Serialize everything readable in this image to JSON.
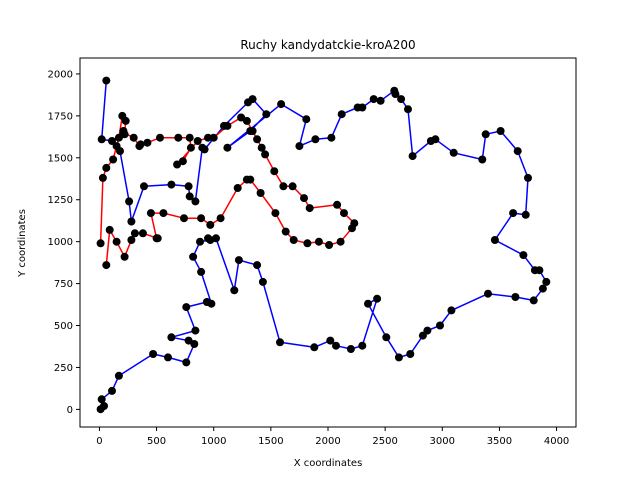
{
  "chart_data": {
    "type": "scatter",
    "title": "Ruchy kandydatckie-kroA200",
    "xlabel": "X coordinates",
    "ylabel": "Y coordinates",
    "xlim": [
      -170,
      4170
    ],
    "ylim": [
      -105,
      2095
    ],
    "xticks": [
      0,
      500,
      1000,
      1500,
      2000,
      2500,
      3000,
      3500,
      4000
    ],
    "yticks": [
      0,
      250,
      500,
      750,
      1000,
      1250,
      1500,
      1750,
      2000
    ],
    "grid": false,
    "colors": {
      "point": "#000000",
      "path_a": "#0000ff",
      "path_b": "#ff0000"
    },
    "series": [
      {
        "color": "blue",
        "x": [
          60,
          20,
          110,
          180,
          260,
          280,
          390,
          630,
          780,
          790,
          840,
          900,
          920,
          1090,
          1300,
          1340,
          1460,
          1320,
          1120,
          1590,
          1810,
          1750,
          1890,
          2030,
          2120,
          2260,
          2300,
          2400,
          2460,
          2580,
          2590,
          2640,
          2700,
          2740,
          2900,
          2940,
          3100,
          3350,
          3380,
          3510,
          3660,
          3750,
          3730,
          3620,
          3460,
          3710,
          3810,
          3850,
          3910,
          3880,
          3800,
          3640,
          3400,
          3080,
          2980,
          2870,
          2830,
          2720,
          2620,
          2510,
          2350,
          2430,
          2300,
          2200,
          2070,
          2020,
          1880,
          1580,
          1430,
          1380,
          1220,
          1180,
          1020,
          950,
          970,
          880,
          820,
          890,
          980,
          940,
          760,
          840,
          630,
          780,
          830,
          760,
          600,
          470,
          170,
          110,
          20,
          40,
          10
        ],
        "y": [
          1960,
          1610,
          1600,
          1540,
          1240,
          1120,
          1330,
          1340,
          1330,
          1270,
          1240,
          1560,
          1550,
          1690,
          1830,
          1850,
          1760,
          1660,
          1560,
          1820,
          1730,
          1570,
          1610,
          1620,
          1760,
          1800,
          1800,
          1850,
          1840,
          1900,
          1880,
          1850,
          1790,
          1510,
          1600,
          1610,
          1530,
          1490,
          1640,
          1660,
          1540,
          1380,
          1160,
          1170,
          1010,
          920,
          830,
          830,
          760,
          720,
          650,
          670,
          690,
          590,
          500,
          470,
          440,
          330,
          310,
          430,
          630,
          660,
          380,
          360,
          380,
          410,
          370,
          400,
          760,
          860,
          890,
          710,
          1020,
          1020,
          1010,
          1000,
          910,
          820,
          630,
          640,
          610,
          470,
          430,
          410,
          390,
          280,
          310,
          330,
          200,
          110,
          60,
          20,
          1
        ]
      },
      {
        "color": "red",
        "x": [
          60,
          90,
          150,
          220,
          280,
          310,
          380,
          510,
          500,
          450,
          560,
          740,
          890,
          970,
          1060,
          1210,
          1290,
          1320,
          1410,
          1540,
          1630,
          1700,
          1820,
          1920,
          2010,
          2110,
          2210,
          2230,
          2140,
          2080,
          1840,
          1790,
          1690,
          1610,
          1530,
          1450,
          1420,
          1380,
          1340,
          1290,
          1240,
          1120,
          1000,
          950,
          860,
          680,
          730,
          800,
          790,
          690,
          530,
          420,
          360,
          350,
          300,
          210,
          210,
          220,
          230,
          200,
          170,
          150,
          120,
          60,
          30,
          10
        ],
        "y": [
          860,
          1070,
          1000,
          910,
          1010,
          1050,
          1050,
          1020,
          1020,
          1170,
          1170,
          1140,
          1140,
          1100,
          1140,
          1320,
          1370,
          1370,
          1290,
          1170,
          1060,
          1010,
          990,
          1000,
          980,
          1000,
          1080,
          1110,
          1170,
          1220,
          1200,
          1260,
          1330,
          1330,
          1420,
          1520,
          1560,
          1610,
          1660,
          1720,
          1740,
          1690,
          1620,
          1620,
          1600,
          1460,
          1480,
          1560,
          1620,
          1620,
          1620,
          1590,
          1580,
          1570,
          1620,
          1650,
          1660,
          1640,
          1720,
          1750,
          1620,
          1570,
          1490,
          1440,
          1380,
          990
        ]
      }
    ]
  }
}
